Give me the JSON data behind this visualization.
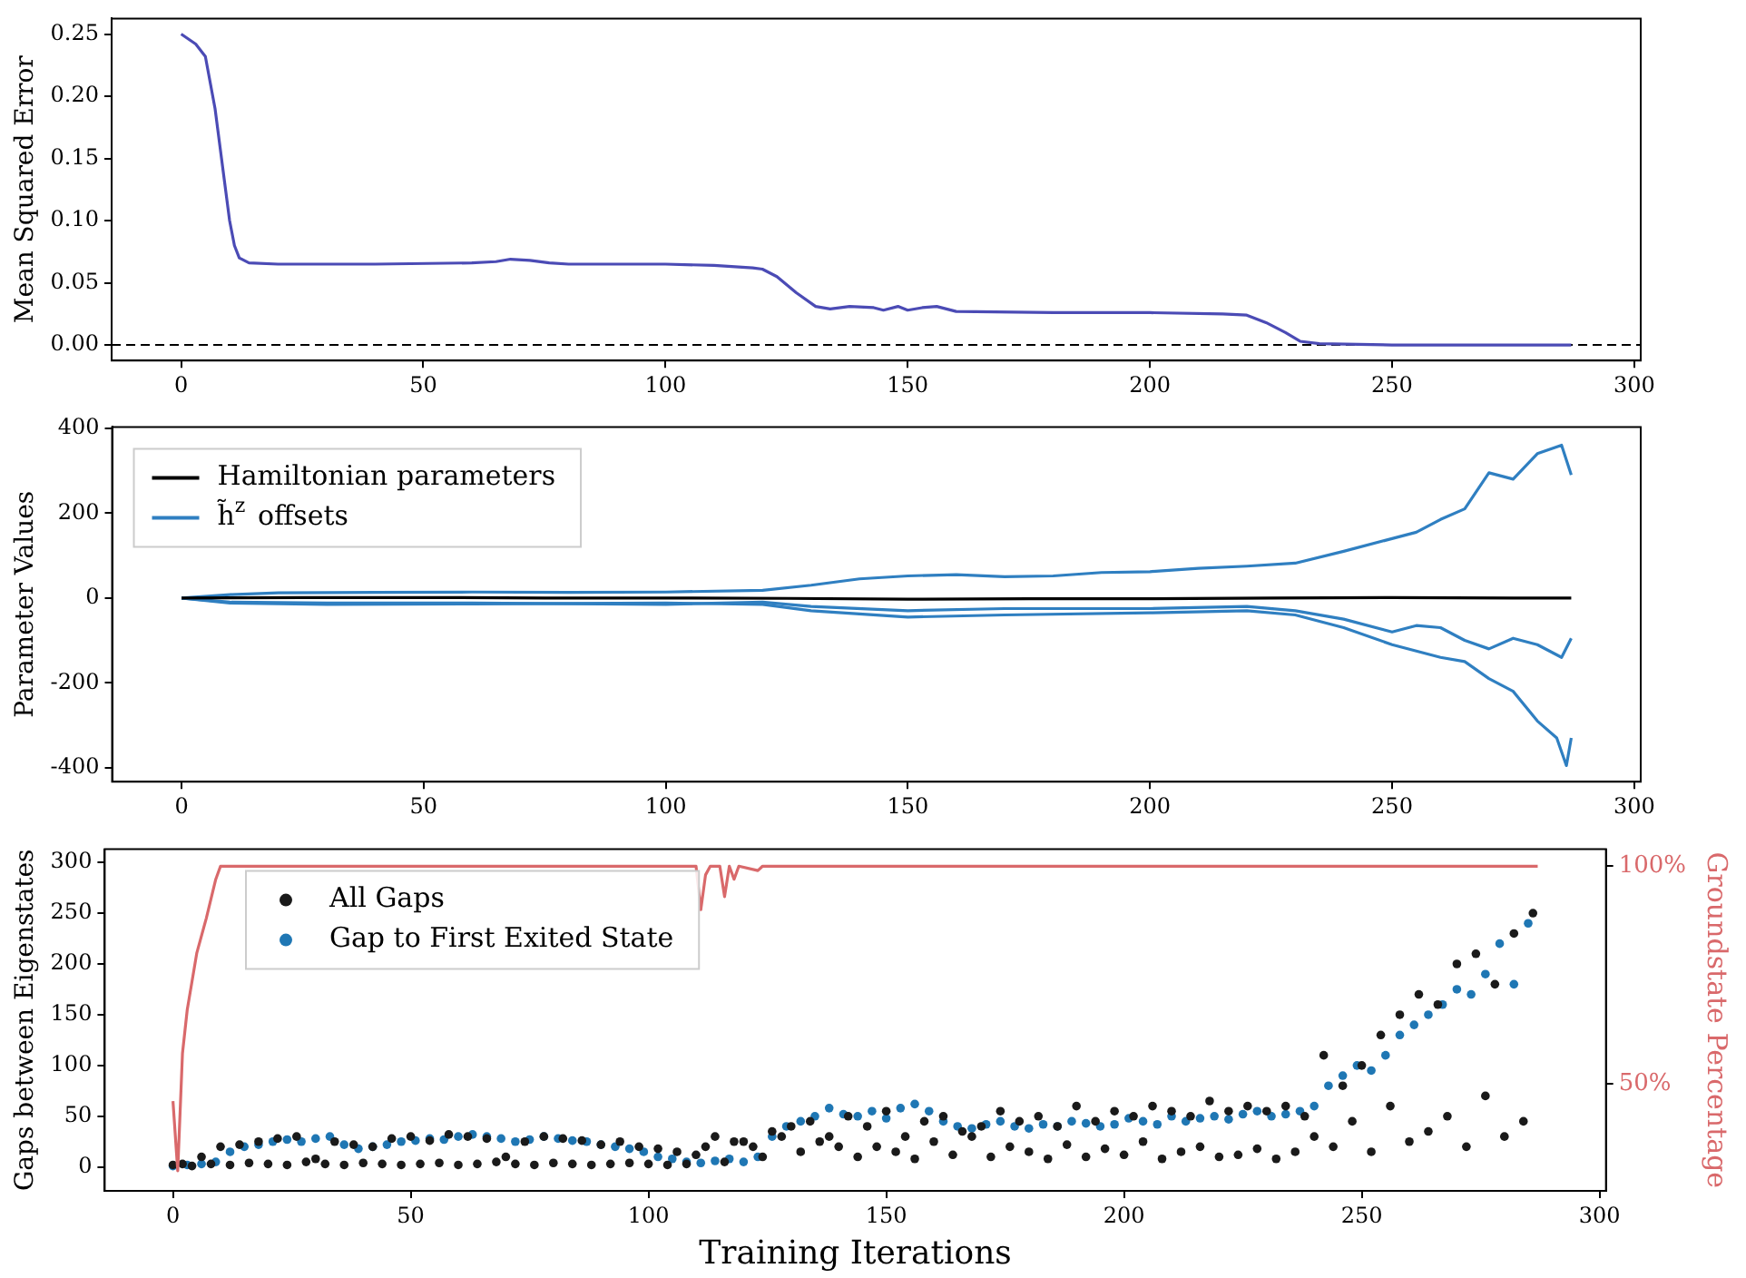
{
  "chart_data": [
    {
      "type": "line",
      "ylabel": "Mean Squared Error",
      "xlim": [
        -14.35,
        301.35
      ],
      "ylim": [
        -0.0125,
        0.2625
      ],
      "xticks": [
        0,
        50,
        100,
        150,
        200,
        250,
        300
      ],
      "yticks": [
        {
          "value": 0,
          "label": "0.00"
        },
        {
          "value": 0.05,
          "label": "0.05"
        },
        {
          "value": 0.1,
          "label": "0.10"
        },
        {
          "value": 0.15,
          "label": "0.15"
        },
        {
          "value": 0.2,
          "label": "0.20"
        },
        {
          "value": 0.25,
          "label": "0.25"
        }
      ],
      "grid": false,
      "marker": "none",
      "line_style": "solid",
      "ref_lines": [
        {
          "axis": "y",
          "value": 0,
          "color": "#000000",
          "line_style": "dashed"
        }
      ],
      "series": [
        {
          "color": "#4b4bb5",
          "x": [
            0,
            3,
            5,
            7,
            9,
            10,
            11,
            12,
            14,
            20,
            40,
            60,
            65,
            68,
            72,
            76,
            80,
            100,
            110,
            118,
            120,
            123,
            127,
            131,
            134,
            138,
            143,
            145,
            148,
            150,
            153,
            156,
            160,
            180,
            200,
            215,
            220,
            224,
            228,
            231,
            235,
            250,
            287
          ],
          "values": [
            0.25,
            0.242,
            0.232,
            0.19,
            0.13,
            0.1,
            0.08,
            0.07,
            0.066,
            0.065,
            0.065,
            0.066,
            0.067,
            0.069,
            0.068,
            0.066,
            0.065,
            0.065,
            0.064,
            0.062,
            0.061,
            0.055,
            0.042,
            0.031,
            0.029,
            0.031,
            0.03,
            0.028,
            0.031,
            0.028,
            0.03,
            0.031,
            0.027,
            0.026,
            0.026,
            0.025,
            0.024,
            0.018,
            0.01,
            0.003,
            0.001,
            0,
            0
          ]
        }
      ]
    },
    {
      "type": "line",
      "ylabel": "Parameter Values",
      "xlim": [
        -14.35,
        301.35
      ],
      "ylim": [
        -433,
        403
      ],
      "xticks": [
        0,
        50,
        100,
        150,
        200,
        250,
        300
      ],
      "yticks": [
        -400,
        -200,
        0,
        200,
        400
      ],
      "grid": false,
      "marker": "none",
      "line_style": "solid",
      "legend": "top left",
      "series": [
        {
          "name": "Hamiltonian parameters",
          "color": "#000000",
          "x": [
            0,
            25,
            50,
            75,
            100,
            125,
            150,
            175,
            200,
            225,
            250,
            275,
            287
          ],
          "values": [
            0,
            1,
            1,
            0,
            0,
            -1,
            -3,
            -2,
            -2,
            0,
            1,
            0,
            0
          ]
        },
        {
          "name": "h̃$^{z}$ offsets",
          "color": "#2f7fc1",
          "x": [
            0,
            10,
            20,
            40,
            60,
            80,
            100,
            120,
            130,
            140,
            150,
            160,
            170,
            180,
            190,
            200,
            210,
            220,
            230,
            240,
            250,
            255,
            260,
            265,
            270,
            275,
            280,
            285,
            287
          ],
          "values": [
            0,
            8,
            12,
            13,
            14,
            13,
            14,
            18,
            30,
            45,
            52,
            55,
            50,
            52,
            60,
            62,
            70,
            75,
            82,
            110,
            140,
            155,
            185,
            210,
            295,
            280,
            340,
            360,
            290
          ]
        },
        {
          "color": "#2f7fc1",
          "x": [
            0,
            10,
            30,
            60,
            100,
            120,
            130,
            150,
            170,
            200,
            220,
            230,
            240,
            250,
            255,
            260,
            265,
            270,
            275,
            280,
            285,
            287
          ],
          "values": [
            0,
            -10,
            -12,
            -12,
            -15,
            -10,
            -20,
            -30,
            -25,
            -25,
            -20,
            -30,
            -50,
            -80,
            -65,
            -70,
            -100,
            -120,
            -95,
            -110,
            -140,
            -95
          ]
        },
        {
          "color": "#2f7fc1",
          "x": [
            0,
            10,
            30,
            60,
            100,
            120,
            130,
            150,
            170,
            200,
            220,
            230,
            240,
            250,
            260,
            265,
            270,
            275,
            280,
            284,
            286,
            287
          ],
          "values": [
            0,
            -12,
            -15,
            -14,
            -12,
            -15,
            -30,
            -45,
            -40,
            -35,
            -30,
            -40,
            -70,
            -110,
            -140,
            -150,
            -190,
            -220,
            -290,
            -330,
            -395,
            -330
          ]
        }
      ]
    },
    {
      "type": "scatter",
      "xlabel": "Training Iterations",
      "ylabel": "Gaps between Eigenstates",
      "y2label": "Groundstate Percentage",
      "xlim": [
        -14.35,
        301.35
      ],
      "ylim": [
        -23.5,
        313
      ],
      "y2lim": [
        25.4,
        103.9
      ],
      "xticks": [
        0,
        50,
        100,
        150,
        200,
        250,
        300
      ],
      "yticks": [
        0,
        50,
        100,
        150,
        200,
        250,
        300
      ],
      "y2ticks": [
        {
          "value": 50,
          "label": "50%"
        },
        {
          "value": 100,
          "label": "100%"
        }
      ],
      "grid": false,
      "marker": "circle",
      "legend": "top left",
      "series": [
        {
          "name": "All Gaps",
          "color": "#1a1a1a",
          "x": [
            0,
            4,
            8,
            12,
            16,
            20,
            24,
            28,
            32,
            36,
            40,
            44,
            48,
            52,
            56,
            60,
            64,
            68,
            72,
            76,
            80,
            84,
            88,
            92,
            96,
            100,
            104,
            108,
            112,
            116,
            120,
            124,
            128,
            132,
            136,
            140,
            144,
            148,
            152,
            156,
            160,
            164,
            168,
            172,
            176,
            180,
            184,
            188,
            192,
            196,
            200,
            204,
            208,
            212,
            216,
            220,
            224,
            228,
            232,
            236,
            240,
            244,
            248,
            252,
            256,
            260,
            264,
            268,
            272,
            276,
            280,
            284,
            2,
            6,
            10,
            14,
            18,
            22,
            26,
            30,
            34,
            38,
            42,
            46,
            50,
            54,
            58,
            62,
            66,
            70,
            74,
            78,
            82,
            86,
            90,
            94,
            98,
            102,
            106,
            110,
            114,
            118,
            122,
            126,
            130,
            134,
            138,
            142,
            146,
            150,
            154,
            158,
            162,
            166,
            170,
            174,
            178,
            182,
            186,
            190,
            194,
            198,
            202,
            206,
            210,
            214,
            218,
            222,
            226,
            230,
            234,
            238,
            242,
            246,
            250,
            254,
            258,
            262,
            266,
            270,
            274,
            278,
            282,
            286
          ],
          "values": [
            2,
            1,
            3,
            2,
            4,
            3,
            2,
            5,
            3,
            2,
            4,
            3,
            2,
            3,
            4,
            2,
            3,
            5,
            3,
            2,
            4,
            3,
            2,
            3,
            4,
            3,
            2,
            3,
            20,
            5,
            25,
            10,
            30,
            15,
            25,
            20,
            10,
            20,
            15,
            8,
            25,
            12,
            30,
            10,
            20,
            15,
            8,
            22,
            10,
            18,
            12,
            25,
            8,
            15,
            20,
            10,
            12,
            18,
            8,
            15,
            30,
            20,
            45,
            15,
            60,
            25,
            35,
            50,
            20,
            70,
            30,
            45,
            3,
            10,
            20,
            22,
            25,
            28,
            30,
            8,
            25,
            22,
            20,
            28,
            30,
            26,
            32,
            30,
            28,
            10,
            25,
            30,
            28,
            26,
            22,
            25,
            20,
            18,
            15,
            12,
            30,
            25,
            20,
            35,
            40,
            45,
            30,
            50,
            40,
            55,
            30,
            45,
            50,
            35,
            40,
            55,
            45,
            50,
            40,
            60,
            45,
            55,
            50,
            60,
            55,
            50,
            65,
            55,
            60,
            55,
            60,
            50,
            110,
            80,
            100,
            130,
            150,
            170,
            160,
            200,
            210,
            180,
            230,
            250
          ]
        },
        {
          "name": "Gap to First Exited State",
          "color": "#1f77b4",
          "x": [
            0,
            3,
            6,
            9,
            12,
            15,
            18,
            21,
            24,
            27,
            30,
            33,
            36,
            39,
            42,
            45,
            48,
            51,
            54,
            57,
            60,
            63,
            66,
            69,
            72,
            75,
            78,
            81,
            84,
            87,
            90,
            93,
            96,
            99,
            102,
            105,
            108,
            111,
            114,
            117,
            120,
            123,
            126,
            129,
            132,
            135,
            138,
            141,
            144,
            147,
            150,
            153,
            156,
            159,
            162,
            165,
            168,
            171,
            174,
            177,
            180,
            183,
            186,
            189,
            192,
            195,
            198,
            201,
            204,
            207,
            210,
            213,
            216,
            219,
            222,
            225,
            228,
            231,
            234,
            237,
            240,
            243,
            246,
            249,
            252,
            255,
            258,
            261,
            264,
            267,
            270,
            273,
            276,
            279,
            282,
            285
          ],
          "values": [
            1,
            2,
            3,
            5,
            15,
            20,
            22,
            25,
            27,
            25,
            28,
            30,
            22,
            18,
            20,
            22,
            25,
            26,
            28,
            27,
            30,
            32,
            30,
            28,
            25,
            27,
            30,
            28,
            26,
            25,
            22,
            20,
            18,
            15,
            10,
            8,
            5,
            4,
            6,
            8,
            5,
            10,
            30,
            40,
            45,
            50,
            58,
            52,
            50,
            55,
            48,
            58,
            62,
            55,
            45,
            40,
            38,
            42,
            45,
            40,
            38,
            42,
            40,
            45,
            43,
            40,
            42,
            48,
            45,
            42,
            50,
            45,
            48,
            50,
            47,
            52,
            55,
            50,
            52,
            55,
            60,
            80,
            90,
            100,
            95,
            110,
            130,
            140,
            150,
            160,
            175,
            170,
            190,
            220,
            180,
            240
          ]
        },
        {
          "type": "line",
          "axis": "y2",
          "color": "#d9696b",
          "marker": "none",
          "x": [
            0,
            1,
            2,
            3,
            5,
            7,
            9,
            10,
            110,
            111,
            112,
            113,
            115,
            116,
            117,
            118,
            119,
            123,
            124,
            287
          ],
          "values": [
            46,
            30,
            57,
            67,
            80,
            88,
            97,
            100,
            100,
            90,
            98,
            100,
            100,
            93,
            100,
            97,
            100,
            99,
            100,
            100
          ]
        }
      ]
    }
  ]
}
